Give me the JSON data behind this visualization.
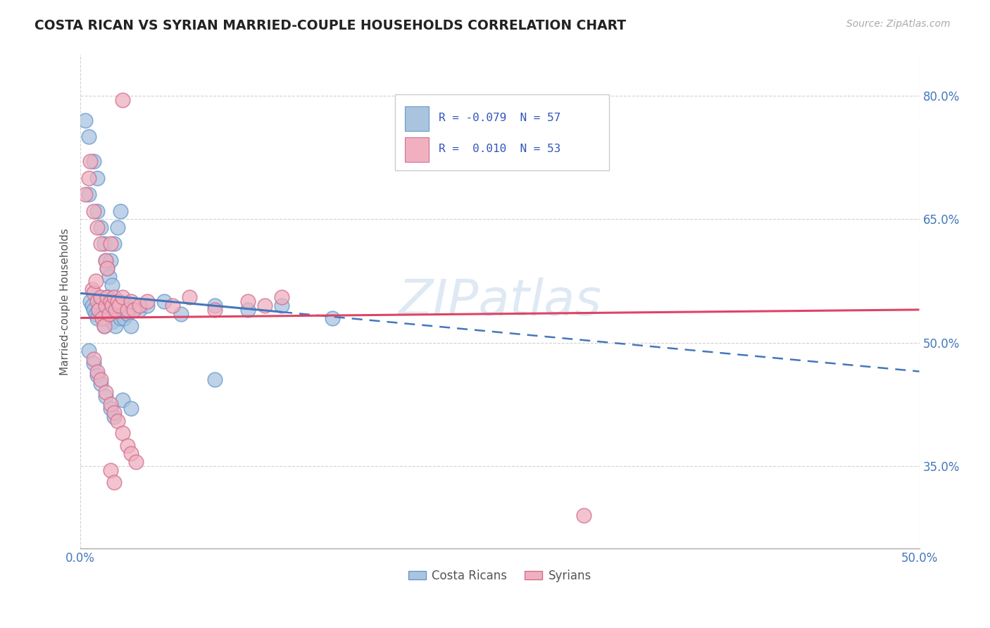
{
  "title": "COSTA RICAN VS SYRIAN MARRIED-COUPLE HOUSEHOLDS CORRELATION CHART",
  "source": "Source: ZipAtlas.com",
  "ylabel_label": "Married-couple Households",
  "color_blue_face": "#aac4e0",
  "color_blue_edge": "#6699cc",
  "color_pink_face": "#f0b0c0",
  "color_pink_edge": "#d07090",
  "color_blue_line": "#4477bb",
  "color_pink_line": "#dd4466",
  "watermark": "ZIPatlas",
  "blue_points": [
    [
      0.003,
      0.77
    ],
    [
      0.005,
      0.75
    ],
    [
      0.005,
      0.68
    ],
    [
      0.008,
      0.72
    ],
    [
      0.01,
      0.7
    ],
    [
      0.01,
      0.66
    ],
    [
      0.012,
      0.64
    ],
    [
      0.014,
      0.62
    ],
    [
      0.015,
      0.6
    ],
    [
      0.016,
      0.59
    ],
    [
      0.017,
      0.58
    ],
    [
      0.018,
      0.6
    ],
    [
      0.019,
      0.57
    ],
    [
      0.02,
      0.62
    ],
    [
      0.022,
      0.64
    ],
    [
      0.024,
      0.66
    ],
    [
      0.006,
      0.55
    ],
    [
      0.007,
      0.545
    ],
    [
      0.008,
      0.54
    ],
    [
      0.009,
      0.535
    ],
    [
      0.01,
      0.53
    ],
    [
      0.011,
      0.54
    ],
    [
      0.012,
      0.55
    ],
    [
      0.013,
      0.535
    ],
    [
      0.014,
      0.52
    ],
    [
      0.015,
      0.53
    ],
    [
      0.016,
      0.555
    ],
    [
      0.017,
      0.545
    ],
    [
      0.018,
      0.54
    ],
    [
      0.019,
      0.525
    ],
    [
      0.02,
      0.545
    ],
    [
      0.021,
      0.52
    ],
    [
      0.022,
      0.54
    ],
    [
      0.023,
      0.55
    ],
    [
      0.024,
      0.53
    ],
    [
      0.025,
      0.545
    ],
    [
      0.026,
      0.53
    ],
    [
      0.027,
      0.545
    ],
    [
      0.028,
      0.535
    ],
    [
      0.03,
      0.52
    ],
    [
      0.035,
      0.54
    ],
    [
      0.04,
      0.545
    ],
    [
      0.05,
      0.55
    ],
    [
      0.06,
      0.535
    ],
    [
      0.08,
      0.545
    ],
    [
      0.1,
      0.54
    ],
    [
      0.12,
      0.545
    ],
    [
      0.15,
      0.53
    ],
    [
      0.005,
      0.49
    ],
    [
      0.008,
      0.475
    ],
    [
      0.01,
      0.46
    ],
    [
      0.012,
      0.45
    ],
    [
      0.015,
      0.435
    ],
    [
      0.018,
      0.42
    ],
    [
      0.02,
      0.41
    ],
    [
      0.025,
      0.43
    ],
    [
      0.03,
      0.42
    ],
    [
      0.08,
      0.455
    ]
  ],
  "pink_points": [
    [
      0.003,
      0.68
    ],
    [
      0.005,
      0.7
    ],
    [
      0.006,
      0.72
    ],
    [
      0.008,
      0.66
    ],
    [
      0.01,
      0.64
    ],
    [
      0.012,
      0.62
    ],
    [
      0.015,
      0.6
    ],
    [
      0.016,
      0.59
    ],
    [
      0.018,
      0.62
    ],
    [
      0.007,
      0.565
    ],
    [
      0.008,
      0.56
    ],
    [
      0.009,
      0.575
    ],
    [
      0.01,
      0.55
    ],
    [
      0.011,
      0.54
    ],
    [
      0.012,
      0.555
    ],
    [
      0.013,
      0.53
    ],
    [
      0.014,
      0.52
    ],
    [
      0.015,
      0.545
    ],
    [
      0.016,
      0.555
    ],
    [
      0.017,
      0.535
    ],
    [
      0.018,
      0.55
    ],
    [
      0.019,
      0.545
    ],
    [
      0.02,
      0.555
    ],
    [
      0.021,
      0.54
    ],
    [
      0.022,
      0.55
    ],
    [
      0.023,
      0.545
    ],
    [
      0.025,
      0.555
    ],
    [
      0.028,
      0.54
    ],
    [
      0.03,
      0.55
    ],
    [
      0.032,
      0.54
    ],
    [
      0.035,
      0.545
    ],
    [
      0.04,
      0.55
    ],
    [
      0.055,
      0.545
    ],
    [
      0.065,
      0.555
    ],
    [
      0.08,
      0.54
    ],
    [
      0.1,
      0.55
    ],
    [
      0.11,
      0.545
    ],
    [
      0.12,
      0.555
    ],
    [
      0.008,
      0.48
    ],
    [
      0.01,
      0.465
    ],
    [
      0.012,
      0.455
    ],
    [
      0.015,
      0.44
    ],
    [
      0.018,
      0.425
    ],
    [
      0.02,
      0.415
    ],
    [
      0.022,
      0.405
    ],
    [
      0.025,
      0.39
    ],
    [
      0.028,
      0.375
    ],
    [
      0.03,
      0.365
    ],
    [
      0.033,
      0.355
    ],
    [
      0.018,
      0.345
    ],
    [
      0.02,
      0.33
    ],
    [
      0.3,
      0.29
    ],
    [
      0.025,
      0.795
    ]
  ],
  "xlim": [
    0.0,
    0.5
  ],
  "ylim": [
    0.25,
    0.85
  ],
  "blue_line": [
    [
      0.0,
      0.56
    ],
    [
      0.5,
      0.465
    ]
  ],
  "pink_line": [
    [
      0.0,
      0.53
    ],
    [
      0.5,
      0.54
    ]
  ],
  "blue_dashed_line": [
    [
      0.12,
      0.54
    ],
    [
      0.5,
      0.465
    ]
  ],
  "figsize": [
    14.06,
    8.92
  ],
  "dpi": 100
}
